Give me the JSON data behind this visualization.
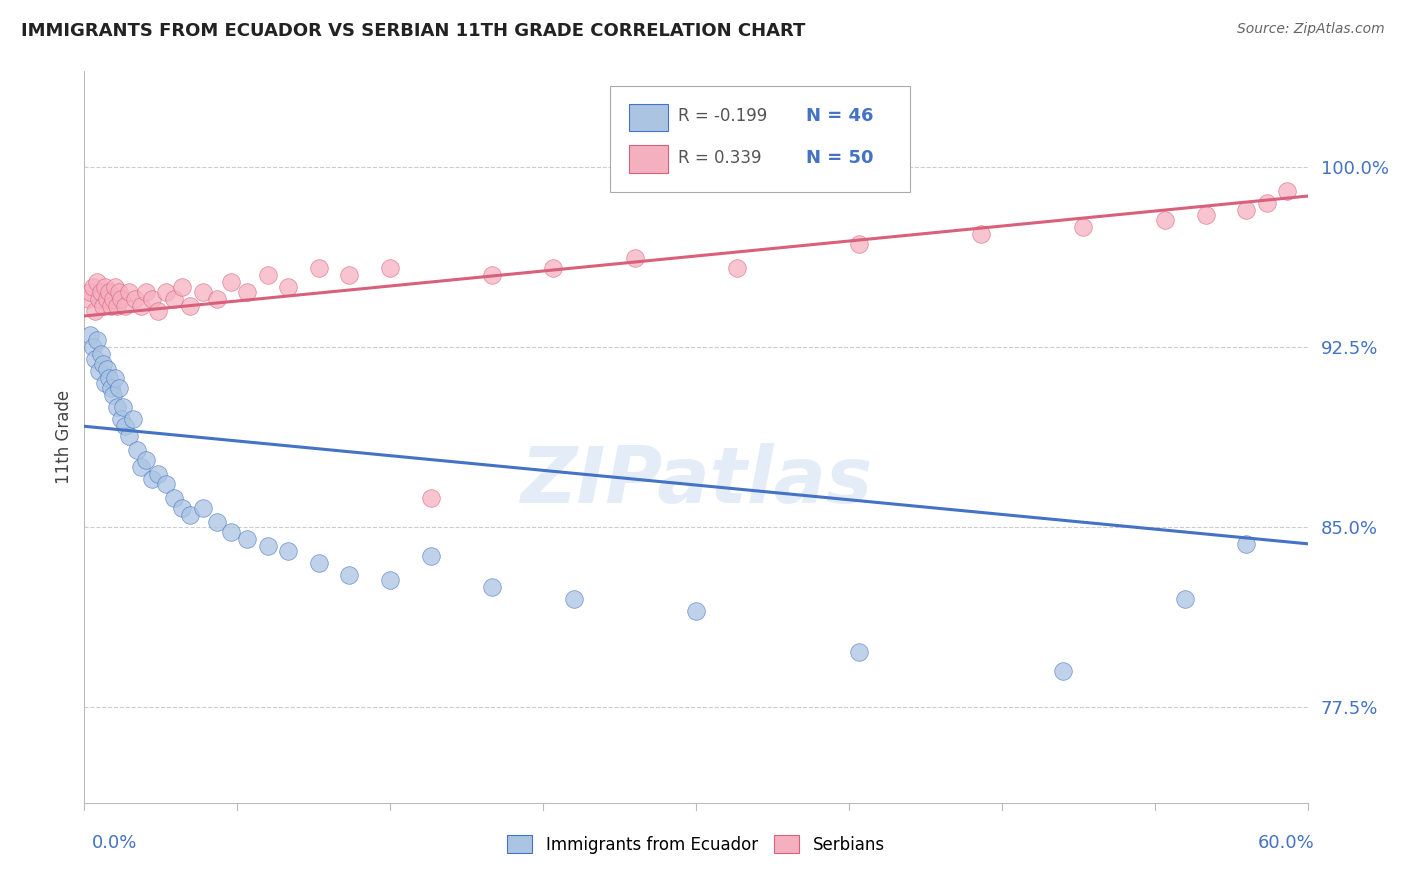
{
  "title": "IMMIGRANTS FROM ECUADOR VS SERBIAN 11TH GRADE CORRELATION CHART",
  "source": "Source: ZipAtlas.com",
  "ylabel": "11th Grade",
  "ylabel_right_labels": [
    "77.5%",
    "85.0%",
    "92.5%",
    "100.0%"
  ],
  "ylabel_right_values": [
    0.775,
    0.85,
    0.925,
    1.0
  ],
  "x_min": 0.0,
  "x_max": 0.6,
  "y_min": 0.735,
  "y_max": 1.04,
  "legend_r_ecuador": "-0.199",
  "legend_n_ecuador": "46",
  "legend_r_serbian": "0.339",
  "legend_n_serbian": "50",
  "ecuador_color": "#aac4e2",
  "serbian_color": "#f5b0c0",
  "ecuador_line_color": "#4472c4",
  "serbian_line_color": "#d9607a",
  "watermark": "ZIPatlas",
  "ecuador_trend_x0": 0.0,
  "ecuador_trend_y0": 0.892,
  "ecuador_trend_x1": 0.6,
  "ecuador_trend_y1": 0.843,
  "serbian_trend_x0": 0.0,
  "serbian_trend_y0": 0.938,
  "serbian_trend_x1": 0.6,
  "serbian_trend_y1": 0.988,
  "ecuador_points_x": [
    0.003,
    0.004,
    0.005,
    0.006,
    0.007,
    0.008,
    0.009,
    0.01,
    0.011,
    0.012,
    0.013,
    0.014,
    0.015,
    0.016,
    0.017,
    0.018,
    0.019,
    0.02,
    0.022,
    0.024,
    0.026,
    0.028,
    0.03,
    0.033,
    0.036,
    0.04,
    0.044,
    0.048,
    0.052,
    0.058,
    0.065,
    0.072,
    0.08,
    0.09,
    0.1,
    0.115,
    0.13,
    0.15,
    0.17,
    0.2,
    0.24,
    0.3,
    0.38,
    0.48,
    0.54,
    0.57
  ],
  "ecuador_points_y": [
    0.93,
    0.925,
    0.92,
    0.928,
    0.915,
    0.922,
    0.918,
    0.91,
    0.916,
    0.912,
    0.908,
    0.905,
    0.912,
    0.9,
    0.908,
    0.895,
    0.9,
    0.892,
    0.888,
    0.895,
    0.882,
    0.875,
    0.878,
    0.87,
    0.872,
    0.868,
    0.862,
    0.858,
    0.855,
    0.858,
    0.852,
    0.848,
    0.845,
    0.842,
    0.84,
    0.835,
    0.83,
    0.828,
    0.838,
    0.825,
    0.82,
    0.815,
    0.798,
    0.79,
    0.82,
    0.843
  ],
  "serbian_points_x": [
    0.002,
    0.003,
    0.004,
    0.005,
    0.006,
    0.007,
    0.008,
    0.009,
    0.01,
    0.011,
    0.012,
    0.013,
    0.014,
    0.015,
    0.016,
    0.017,
    0.018,
    0.02,
    0.022,
    0.025,
    0.028,
    0.03,
    0.033,
    0.036,
    0.04,
    0.044,
    0.048,
    0.052,
    0.058,
    0.065,
    0.072,
    0.08,
    0.09,
    0.1,
    0.115,
    0.13,
    0.15,
    0.17,
    0.2,
    0.23,
    0.27,
    0.32,
    0.38,
    0.44,
    0.49,
    0.53,
    0.55,
    0.57,
    0.58,
    0.59
  ],
  "serbian_points_y": [
    0.945,
    0.948,
    0.95,
    0.94,
    0.952,
    0.945,
    0.948,
    0.942,
    0.95,
    0.945,
    0.948,
    0.942,
    0.945,
    0.95,
    0.942,
    0.948,
    0.945,
    0.942,
    0.948,
    0.945,
    0.942,
    0.948,
    0.945,
    0.94,
    0.948,
    0.945,
    0.95,
    0.942,
    0.948,
    0.945,
    0.952,
    0.948,
    0.955,
    0.95,
    0.958,
    0.955,
    0.958,
    0.862,
    0.955,
    0.958,
    0.962,
    0.958,
    0.968,
    0.972,
    0.975,
    0.978,
    0.98,
    0.982,
    0.985,
    0.99
  ]
}
